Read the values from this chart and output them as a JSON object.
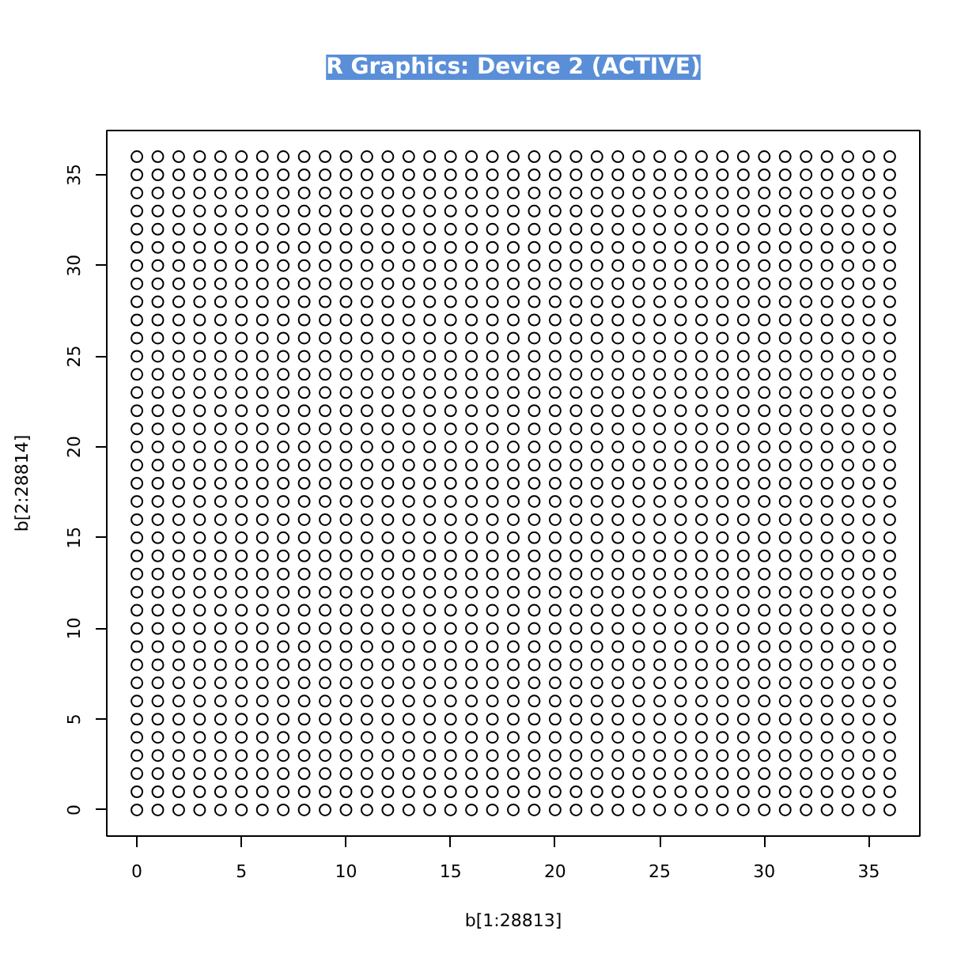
{
  "chart_data": {
    "type": "scatter",
    "title": "R Graphics: Device 2 (ACTIVE)",
    "xlabel": "b[1:28813]",
    "ylabel": "b[2:28814]",
    "xlim": [
      -1.44,
      37.44
    ],
    "ylim": [
      -1.44,
      37.44
    ],
    "xticks": [
      0,
      5,
      10,
      15,
      20,
      25,
      30,
      35
    ],
    "yticks": [
      0,
      5,
      10,
      15,
      20,
      25,
      30,
      35
    ],
    "marker": "circle",
    "color": "#000000",
    "x": [
      0,
      1,
      2,
      3,
      4,
      5,
      6,
      7,
      8,
      9,
      10,
      11,
      12,
      13,
      14,
      15,
      16,
      17,
      18,
      19,
      20,
      21,
      22,
      23,
      24,
      25,
      26,
      27,
      28,
      29,
      30,
      31,
      32,
      33,
      34,
      35,
      36,
      0,
      1,
      2,
      3,
      4,
      5,
      6,
      7,
      8,
      9,
      10,
      11,
      12,
      13,
      14,
      15,
      16,
      17,
      18,
      19,
      20,
      21,
      22,
      23,
      24,
      25,
      26,
      27,
      28,
      29,
      30,
      31,
      32,
      33,
      34,
      35,
      36,
      0,
      1,
      2,
      3,
      4,
      5,
      6,
      7,
      8,
      9,
      10,
      11,
      12,
      13,
      14,
      15,
      16,
      17,
      18,
      19,
      20,
      21,
      22,
      23,
      24,
      25,
      26,
      27,
      28,
      29,
      30,
      31,
      32,
      33,
      34,
      35,
      36,
      0,
      1,
      2,
      3,
      4,
      5,
      6,
      7,
      8,
      9,
      10,
      11,
      12,
      13,
      14,
      15,
      16,
      17,
      18,
      19,
      20,
      21,
      22,
      23,
      24,
      25,
      26,
      27,
      28,
      29,
      30,
      31,
      32,
      33,
      34,
      35,
      36,
      0,
      1,
      2,
      3,
      4,
      5,
      6,
      7,
      8,
      9,
      10,
      11,
      12,
      13,
      14,
      15,
      16,
      17,
      18,
      19,
      20,
      21,
      22,
      23,
      24,
      25,
      26,
      27,
      28,
      29,
      30,
      31,
      32,
      33,
      34,
      35,
      36,
      0,
      1,
      2,
      3,
      4,
      5,
      6,
      7,
      8,
      9,
      10,
      11,
      12,
      13,
      14,
      15,
      16,
      17,
      18,
      19,
      20,
      21,
      22,
      23,
      24,
      25,
      26,
      27,
      28,
      29,
      30,
      31,
      32,
      33,
      34,
      35,
      36,
      0,
      1,
      2,
      3,
      4,
      5,
      6,
      7,
      8,
      9,
      10,
      11,
      12,
      13,
      14,
      15,
      16,
      17,
      18,
      19,
      20,
      21,
      22,
      23,
      24,
      25,
      26,
      27,
      28,
      29,
      30,
      31,
      32,
      33,
      34,
      35,
      36,
      0,
      1,
      2,
      3,
      4,
      5,
      6,
      7,
      8,
      9,
      10,
      11,
      12,
      13,
      14,
      15,
      16,
      17,
      18,
      19,
      20,
      21,
      22,
      23,
      24,
      25,
      26,
      27,
      28,
      29,
      30,
      31,
      32,
      33,
      34,
      35,
      36,
      0,
      1,
      2,
      3,
      4,
      5,
      6,
      7,
      8,
      9,
      10,
      11,
      12,
      13,
      14,
      15,
      16,
      17,
      18,
      19,
      20,
      21,
      22,
      23,
      24,
      25,
      26,
      27,
      28,
      29,
      30,
      31,
      32,
      33,
      34,
      35,
      36,
      0,
      1,
      2,
      3,
      4,
      5,
      6,
      7,
      8,
      9,
      10,
      11,
      12,
      13,
      14,
      15,
      16,
      17,
      18,
      19,
      20,
      21,
      22,
      23,
      24,
      25,
      26,
      27,
      28,
      29,
      30,
      31,
      32,
      33,
      34,
      35,
      36,
      0,
      1,
      2,
      3,
      4,
      5,
      6,
      7,
      8,
      9,
      10,
      11,
      12,
      13,
      14,
      15,
      16,
      17,
      18,
      19,
      20,
      21,
      22,
      23,
      24,
      25,
      26,
      27,
      28,
      29,
      30,
      31,
      32,
      33,
      34,
      35,
      36,
      0,
      1,
      2,
      3,
      4,
      5,
      6,
      7,
      8,
      9,
      10,
      11,
      12,
      13,
      14,
      15,
      16,
      17,
      18,
      19,
      20,
      21,
      22,
      23,
      24,
      25,
      26,
      27,
      28,
      29,
      30,
      31,
      32,
      33,
      34,
      35,
      36,
      0,
      1,
      2,
      3,
      4,
      5,
      6,
      7,
      8,
      9,
      10,
      11,
      12,
      13,
      14,
      15,
      16,
      17,
      18,
      19,
      20,
      21,
      22,
      23,
      24,
      25,
      26,
      27,
      28,
      29,
      30,
      31,
      32,
      33,
      34,
      35,
      36,
      0,
      1,
      2,
      3,
      4,
      5,
      6,
      7,
      8,
      9,
      10,
      11,
      12,
      13,
      14,
      15,
      16,
      17,
      18,
      19,
      20,
      21,
      22,
      23,
      24,
      25,
      26,
      27,
      28,
      29,
      30,
      31,
      32,
      33,
      34,
      35,
      36,
      0,
      1,
      2,
      3,
      4,
      5,
      6,
      7,
      8,
      9,
      10,
      11,
      12,
      13,
      14,
      15,
      16,
      17,
      18,
      19,
      20,
      21,
      22,
      23,
      24,
      25,
      26,
      27,
      28,
      29,
      30,
      31,
      32,
      33,
      34,
      35,
      36,
      0,
      1,
      2,
      3,
      4,
      5,
      6,
      7,
      8,
      9,
      10,
      11,
      12,
      13,
      14,
      15,
      16,
      17,
      18,
      19,
      20,
      21,
      22,
      23,
      24,
      25,
      26,
      27,
      28,
      29,
      30,
      31,
      32,
      33,
      34,
      35,
      36,
      0,
      1,
      2,
      3,
      4,
      5,
      6,
      7,
      8,
      9,
      10,
      11,
      12,
      13,
      14,
      15,
      16,
      17,
      18,
      19,
      20,
      21,
      22,
      23,
      24,
      25,
      26,
      27,
      28,
      29,
      30,
      31,
      32,
      33,
      34,
      35,
      36,
      0,
      1,
      2,
      3,
      4,
      5,
      6,
      7,
      8,
      9,
      10,
      11,
      12,
      13,
      14,
      15,
      16,
      17,
      18,
      19,
      20,
      21,
      22,
      23,
      24,
      25,
      26,
      27,
      28,
      29,
      30,
      31,
      32,
      33,
      34,
      35,
      36,
      0,
      1,
      2,
      3,
      4,
      5,
      6,
      7,
      8,
      9,
      10,
      11,
      12,
      13,
      14,
      15,
      16,
      17,
      18,
      19,
      20,
      21,
      22,
      23,
      24,
      25,
      26,
      27,
      28,
      29,
      30,
      31,
      32,
      33,
      34,
      35,
      36,
      0,
      1,
      2,
      3,
      4,
      5,
      6,
      7,
      8,
      9,
      10,
      11,
      12,
      13,
      14,
      15,
      16,
      17,
      18,
      19,
      20,
      21,
      22,
      23,
      24,
      25,
      26,
      27,
      28,
      29,
      30,
      31,
      32,
      33,
      34,
      35,
      36,
      0,
      1,
      2,
      3,
      4,
      5,
      6,
      7,
      8,
      9,
      10,
      11,
      12,
      13,
      14,
      15,
      16,
      17,
      18,
      19,
      20,
      21,
      22,
      23,
      24,
      25,
      26,
      27,
      28,
      29,
      30,
      31,
      32,
      33,
      34,
      35,
      36,
      0,
      1,
      2,
      3,
      4,
      5,
      6,
      7,
      8,
      9,
      10,
      11,
      12,
      13,
      14,
      15,
      16,
      17,
      18,
      19,
      20,
      21,
      22,
      23,
      24,
      25,
      26,
      27,
      28,
      29,
      30,
      31,
      32,
      33,
      34,
      35,
      36,
      0,
      1,
      2,
      3,
      4,
      5,
      6,
      7,
      8,
      9,
      10,
      11,
      12,
      13,
      14,
      15,
      16,
      17,
      18,
      19,
      20,
      21,
      22,
      23,
      24,
      25,
      26,
      27,
      28,
      29,
      30,
      31,
      32,
      33,
      34,
      35,
      36,
      0,
      1,
      2,
      3,
      4,
      5,
      6,
      7,
      8,
      9,
      10,
      11,
      12,
      13,
      14,
      15,
      16,
      17,
      18,
      19,
      20,
      21,
      22,
      23,
      24,
      25,
      26,
      27,
      28,
      29,
      30,
      31,
      32,
      33,
      34,
      35,
      36,
      0,
      1,
      2,
      3,
      4,
      5,
      6,
      7,
      8,
      9,
      10,
      11,
      12,
      13,
      14,
      15,
      16,
      17,
      18,
      19,
      20,
      21,
      22,
      23,
      24,
      25,
      26,
      27,
      28,
      29,
      30,
      31,
      32,
      33,
      34,
      35,
      36,
      0,
      1,
      2,
      3,
      4,
      5,
      6,
      7,
      8,
      9,
      10,
      11,
      12,
      13,
      14,
      15,
      16,
      17,
      18,
      19,
      20,
      21,
      22,
      23,
      24,
      25,
      26,
      27,
      28,
      29,
      30,
      31,
      32,
      33,
      34,
      35,
      36,
      0,
      1,
      2,
      3,
      4,
      5,
      6,
      7,
      8,
      9,
      10,
      11,
      12,
      13,
      14,
      15,
      16,
      17,
      18,
      19,
      20,
      21,
      22,
      23,
      24,
      25,
      26,
      27,
      28,
      29,
      30,
      31,
      32,
      33,
      34,
      35,
      36,
      0,
      1,
      2,
      3,
      4,
      5,
      6,
      7,
      8,
      9,
      10,
      11,
      12,
      13,
      14,
      15,
      16,
      17,
      18,
      19,
      20,
      21,
      22,
      23,
      24,
      25,
      26,
      27,
      28,
      29,
      30,
      31,
      32,
      33,
      34,
      35,
      36,
      0,
      1,
      2,
      3,
      4,
      5,
      6,
      7,
      8,
      9,
      10,
      11,
      12,
      13,
      14,
      15,
      16,
      17,
      18,
      19,
      20,
      21,
      22,
      23,
      24,
      25,
      26,
      27,
      28,
      29,
      30,
      31,
      32,
      33,
      34,
      35,
      36,
      0,
      1,
      2,
      3,
      4,
      5,
      6,
      7,
      8,
      9,
      10,
      11,
      12,
      13,
      14,
      15,
      16,
      17,
      18,
      19,
      20,
      21,
      22,
      23,
      24,
      25,
      26,
      27,
      28,
      29,
      30,
      31,
      32,
      33,
      34,
      35,
      36,
      0,
      1,
      2,
      3,
      4,
      5,
      6,
      7,
      8,
      9,
      10,
      11,
      12,
      13,
      14,
      15,
      16,
      17,
      18,
      19,
      20,
      21,
      22,
      23,
      24,
      25,
      26,
      27,
      28,
      29,
      30,
      31,
      32,
      33,
      34,
      35,
      36,
      0,
      1,
      2,
      3,
      4,
      5,
      6,
      7,
      8,
      9,
      10,
      11,
      12,
      13,
      14,
      15,
      16,
      17,
      18,
      19,
      20,
      21,
      22,
      23,
      24,
      25,
      26,
      27,
      28,
      29,
      30,
      31,
      32,
      33,
      34,
      35,
      36,
      0,
      1,
      2,
      3,
      4,
      5,
      6,
      7,
      8,
      9,
      10,
      11,
      12,
      13,
      14,
      15,
      16,
      17,
      18,
      19,
      20,
      21,
      22,
      23,
      24,
      25,
      26,
      27,
      28,
      29,
      30,
      31,
      32,
      33,
      34,
      35,
      36,
      0,
      1,
      2,
      3,
      4,
      5,
      6,
      7,
      8,
      9,
      10,
      11,
      12,
      13,
      14,
      15,
      16,
      17,
      18,
      19,
      20,
      21,
      22,
      23,
      24,
      25,
      26,
      27,
      28,
      29,
      30,
      31,
      32,
      33,
      34,
      35,
      36,
      0,
      1,
      2,
      3,
      4,
      5,
      6,
      7,
      8,
      9,
      10,
      11,
      12,
      13,
      14,
      15,
      16,
      17,
      18,
      19,
      20,
      21,
      22,
      23,
      24,
      25,
      26,
      27,
      28,
      29,
      30,
      31,
      32,
      33,
      34,
      35,
      36,
      0,
      1,
      2,
      3,
      4,
      5,
      6,
      7,
      8,
      9,
      10,
      11,
      12,
      13,
      14,
      15,
      16,
      17,
      18,
      19,
      20,
      21,
      22,
      23,
      24,
      25,
      26,
      27,
      28,
      29,
      30,
      31,
      32,
      33,
      34,
      35,
      36,
      0,
      1,
      2,
      3,
      4,
      5,
      6,
      7,
      8,
      9,
      10,
      11,
      12,
      13,
      14,
      15,
      16,
      17,
      18,
      19,
      20,
      21,
      22,
      23,
      24,
      25,
      26,
      27,
      28,
      29,
      30,
      31,
      32,
      33,
      34,
      35,
      36
    ],
    "values": [
      0,
      0,
      0,
      0,
      0,
      0,
      0,
      0,
      0,
      0,
      0,
      0,
      0,
      0,
      0,
      0,
      0,
      0,
      0,
      0,
      0,
      0,
      0,
      0,
      0,
      0,
      0,
      0,
      0,
      0,
      0,
      0,
      0,
      0,
      0,
      0,
      0,
      1,
      1,
      1,
      1,
      1,
      1,
      1,
      1,
      1,
      1,
      1,
      1,
      1,
      1,
      1,
      1,
      1,
      1,
      1,
      1,
      1,
      1,
      1,
      1,
      1,
      1,
      1,
      1,
      1,
      1,
      1,
      1,
      1,
      1,
      1,
      1,
      1,
      2,
      2,
      2,
      2,
      2,
      2,
      2,
      2,
      2,
      2,
      2,
      2,
      2,
      2,
      2,
      2,
      2,
      2,
      2,
      2,
      2,
      2,
      2,
      2,
      2,
      2,
      2,
      2,
      2,
      2,
      2,
      2,
      2,
      2,
      2,
      2,
      2,
      3,
      3,
      3,
      3,
      3,
      3,
      3,
      3,
      3,
      3,
      3,
      3,
      3,
      3,
      3,
      3,
      3,
      3,
      3,
      3,
      3,
      3,
      3,
      3,
      3,
      3,
      3,
      3,
      3,
      3,
      3,
      3,
      3,
      3,
      3,
      3,
      3,
      4,
      4,
      4,
      4,
      4,
      4,
      4,
      4,
      4,
      4,
      4,
      4,
      4,
      4,
      4,
      4,
      4,
      4,
      4,
      4,
      4,
      4,
      4,
      4,
      4,
      4,
      4,
      4,
      4,
      4,
      4,
      4,
      4,
      4,
      4,
      4,
      4,
      5,
      5,
      5,
      5,
      5,
      5,
      5,
      5,
      5,
      5,
      5,
      5,
      5,
      5,
      5,
      5,
      5,
      5,
      5,
      5,
      5,
      5,
      5,
      5,
      5,
      5,
      5,
      5,
      5,
      5,
      5,
      5,
      5,
      5,
      5,
      5,
      5,
      6,
      6,
      6,
      6,
      6,
      6,
      6,
      6,
      6,
      6,
      6,
      6,
      6,
      6,
      6,
      6,
      6,
      6,
      6,
      6,
      6,
      6,
      6,
      6,
      6,
      6,
      6,
      6,
      6,
      6,
      6,
      6,
      6,
      6,
      6,
      6,
      6,
      7,
      7,
      7,
      7,
      7,
      7,
      7,
      7,
      7,
      7,
      7,
      7,
      7,
      7,
      7,
      7,
      7,
      7,
      7,
      7,
      7,
      7,
      7,
      7,
      7,
      7,
      7,
      7,
      7,
      7,
      7,
      7,
      7,
      7,
      7,
      7,
      7,
      8,
      8,
      8,
      8,
      8,
      8,
      8,
      8,
      8,
      8,
      8,
      8,
      8,
      8,
      8,
      8,
      8,
      8,
      8,
      8,
      8,
      8,
      8,
      8,
      8,
      8,
      8,
      8,
      8,
      8,
      8,
      8,
      8,
      8,
      8,
      8,
      8,
      9,
      9,
      9,
      9,
      9,
      9,
      9,
      9,
      9,
      9,
      9,
      9,
      9,
      9,
      9,
      9,
      9,
      9,
      9,
      9,
      9,
      9,
      9,
      9,
      9,
      9,
      9,
      9,
      9,
      9,
      9,
      9,
      9,
      9,
      9,
      9,
      9,
      10,
      10,
      10,
      10,
      10,
      10,
      10,
      10,
      10,
      10,
      10,
      10,
      10,
      10,
      10,
      10,
      10,
      10,
      10,
      10,
      10,
      10,
      10,
      10,
      10,
      10,
      10,
      10,
      10,
      10,
      10,
      10,
      10,
      10,
      10,
      10,
      10,
      11,
      11,
      11,
      11,
      11,
      11,
      11,
      11,
      11,
      11,
      11,
      11,
      11,
      11,
      11,
      11,
      11,
      11,
      11,
      11,
      11,
      11,
      11,
      11,
      11,
      11,
      11,
      11,
      11,
      11,
      11,
      11,
      11,
      11,
      11,
      11,
      11,
      12,
      12,
      12,
      12,
      12,
      12,
      12,
      12,
      12,
      12,
      12,
      12,
      12,
      12,
      12,
      12,
      12,
      12,
      12,
      12,
      12,
      12,
      12,
      12,
      12,
      12,
      12,
      12,
      12,
      12,
      12,
      12,
      12,
      12,
      12,
      12,
      12,
      13,
      13,
      13,
      13,
      13,
      13,
      13,
      13,
      13,
      13,
      13,
      13,
      13,
      13,
      13,
      13,
      13,
      13,
      13,
      13,
      13,
      13,
      13,
      13,
      13,
      13,
      13,
      13,
      13,
      13,
      13,
      13,
      13,
      13,
      13,
      13,
      13,
      14,
      14,
      14,
      14,
      14,
      14,
      14,
      14,
      14,
      14,
      14,
      14,
      14,
      14,
      14,
      14,
      14,
      14,
      14,
      14,
      14,
      14,
      14,
      14,
      14,
      14,
      14,
      14,
      14,
      14,
      14,
      14,
      14,
      14,
      14,
      14,
      14,
      15,
      15,
      15,
      15,
      15,
      15,
      15,
      15,
      15,
      15,
      15,
      15,
      15,
      15,
      15,
      15,
      15,
      15,
      15,
      15,
      15,
      15,
      15,
      15,
      15,
      15,
      15,
      15,
      15,
      15,
      15,
      15,
      15,
      15,
      15,
      15,
      15,
      16,
      16,
      16,
      16,
      16,
      16,
      16,
      16,
      16,
      16,
      16,
      16,
      16,
      16,
      16,
      16,
      16,
      16,
      16,
      16,
      16,
      16,
      16,
      16,
      16,
      16,
      16,
      16,
      16,
      16,
      16,
      16,
      16,
      16,
      16,
      16,
      16,
      17,
      17,
      17,
      17,
      17,
      17,
      17,
      17,
      17,
      17,
      17,
      17,
      17,
      17,
      17,
      17,
      17,
      17,
      17,
      17,
      17,
      17,
      17,
      17,
      17,
      17,
      17,
      17,
      17,
      17,
      17,
      17,
      17,
      17,
      17,
      17,
      17,
      18,
      18,
      18,
      18,
      18,
      18,
      18,
      18,
      18,
      18,
      18,
      18,
      18,
      18,
      18,
      18,
      18,
      18,
      18,
      18,
      18,
      18,
      18,
      18,
      18,
      18,
      18,
      18,
      18,
      18,
      18,
      18,
      18,
      18,
      18,
      18,
      18,
      19,
      19,
      19,
      19,
      19,
      19,
      19,
      19,
      19,
      19,
      19,
      19,
      19,
      19,
      19,
      19,
      19,
      19,
      19,
      19,
      19,
      19,
      19,
      19,
      19,
      19,
      19,
      19,
      19,
      19,
      19,
      19,
      19,
      19,
      19,
      19,
      19,
      20,
      20,
      20,
      20,
      20,
      20,
      20,
      20,
      20,
      20,
      20,
      20,
      20,
      20,
      20,
      20,
      20,
      20,
      20,
      20,
      20,
      20,
      20,
      20,
      20,
      20,
      20,
      20,
      20,
      20,
      20,
      20,
      20,
      20,
      20,
      20,
      20,
      21,
      21,
      21,
      21,
      21,
      21,
      21,
      21,
      21,
      21,
      21,
      21,
      21,
      21,
      21,
      21,
      21,
      21,
      21,
      21,
      21,
      21,
      21,
      21,
      21,
      21,
      21,
      21,
      21,
      21,
      21,
      21,
      21,
      21,
      21,
      21,
      21,
      22,
      22,
      22,
      22,
      22,
      22,
      22,
      22,
      22,
      22,
      22,
      22,
      22,
      22,
      22,
      22,
      22,
      22,
      22,
      22,
      22,
      22,
      22,
      22,
      22,
      22,
      22,
      22,
      22,
      22,
      22,
      22,
      22,
      22,
      22,
      22,
      22,
      23,
      23,
      23,
      23,
      23,
      23,
      23,
      23,
      23,
      23,
      23,
      23,
      23,
      23,
      23,
      23,
      23,
      23,
      23,
      23,
      23,
      23,
      23,
      23,
      23,
      23,
      23,
      23,
      23,
      23,
      23,
      23,
      23,
      23,
      23,
      23,
      23,
      24,
      24,
      24,
      24,
      24,
      24,
      24,
      24,
      24,
      24,
      24,
      24,
      24,
      24,
      24,
      24,
      24,
      24,
      24,
      24,
      24,
      24,
      24,
      24,
      24,
      24,
      24,
      24,
      24,
      24,
      24,
      24,
      24,
      24,
      24,
      24,
      24,
      25,
      25,
      25,
      25,
      25,
      25,
      25,
      25,
      25,
      25,
      25,
      25,
      25,
      25,
      25,
      25,
      25,
      25,
      25,
      25,
      25,
      25,
      25,
      25,
      25,
      25,
      25,
      25,
      25,
      25,
      25,
      25,
      25,
      25,
      25,
      25,
      25,
      26,
      26,
      26,
      26,
      26,
      26,
      26,
      26,
      26,
      26,
      26,
      26,
      26,
      26,
      26,
      26,
      26,
      26,
      26,
      26,
      26,
      26,
      26,
      26,
      26,
      26,
      26,
      26,
      26,
      26,
      26,
      26,
      26,
      26,
      26,
      26,
      26,
      27,
      27,
      27,
      27,
      27,
      27,
      27,
      27,
      27,
      27,
      27,
      27,
      27,
      27,
      27,
      27,
      27,
      27,
      27,
      27,
      27,
      27,
      27,
      27,
      27,
      27,
      27,
      27,
      27,
      27,
      27,
      27,
      27,
      27,
      27,
      27,
      27,
      28,
      28,
      28,
      28,
      28,
      28,
      28,
      28,
      28,
      28,
      28,
      28,
      28,
      28,
      28,
      28,
      28,
      28,
      28,
      28,
      28,
      28,
      28,
      28,
      28,
      28,
      28,
      28,
      28,
      28,
      28,
      28,
      28,
      28,
      28,
      28,
      28,
      29,
      29,
      29,
      29,
      29,
      29,
      29,
      29,
      29,
      29,
      29,
      29,
      29,
      29,
      29,
      29,
      29,
      29,
      29,
      29,
      29,
      29,
      29,
      29,
      29,
      29,
      29,
      29,
      29,
      29,
      29,
      29,
      29,
      29,
      29,
      29,
      29,
      30,
      30,
      30,
      30,
      30,
      30,
      30,
      30,
      30,
      30,
      30,
      30,
      30,
      30,
      30,
      30,
      30,
      30,
      30,
      30,
      30,
      30,
      30,
      30,
      30,
      30,
      30,
      30,
      30,
      30,
      30,
      30,
      30,
      30,
      30,
      30,
      30,
      31,
      31,
      31,
      31,
      31,
      31,
      31,
      31,
      31,
      31,
      31,
      31,
      31,
      31,
      31,
      31,
      31,
      31,
      31,
      31,
      31,
      31,
      31,
      31,
      31,
      31,
      31,
      31,
      31,
      31,
      31,
      31,
      31,
      31,
      31,
      31,
      31,
      32,
      32,
      32,
      32,
      32,
      32,
      32,
      32,
      32,
      32,
      32,
      32,
      32,
      32,
      32,
      32,
      32,
      32,
      32,
      32,
      32,
      32,
      32,
      32,
      32,
      32,
      32,
      32,
      32,
      32,
      32,
      32,
      32,
      32,
      32,
      32,
      32,
      33,
      33,
      33,
      33,
      33,
      33,
      33,
      33,
      33,
      33,
      33,
      33,
      33,
      33,
      33,
      33,
      33,
      33,
      33,
      33,
      33,
      33,
      33,
      33,
      33,
      33,
      33,
      33,
      33,
      33,
      33,
      33,
      33,
      33,
      33,
      33,
      33,
      34,
      34,
      34,
      34,
      34,
      34,
      34,
      34,
      34,
      34,
      34,
      34,
      34,
      34,
      34,
      34,
      34,
      34,
      34,
      34,
      34,
      34,
      34,
      34,
      34,
      34,
      34,
      34,
      34,
      34,
      34,
      34,
      34,
      34,
      34,
      34,
      34,
      35,
      35,
      35,
      35,
      35,
      35,
      35,
      35,
      35,
      35,
      35,
      35,
      35,
      35,
      35,
      35,
      35,
      35,
      35,
      35,
      35,
      35,
      35,
      35,
      35,
      35,
      35,
      35,
      35,
      35,
      35,
      35,
      35,
      35,
      35,
      35,
      35,
      36,
      36,
      36,
      36,
      36,
      36,
      36,
      36,
      36,
      36,
      36,
      36,
      36,
      36,
      36,
      36,
      36,
      36,
      36,
      36,
      36,
      36,
      36,
      36,
      36,
      36,
      36,
      36,
      36,
      36,
      36,
      36,
      36,
      36,
      36,
      36,
      36
    ]
  }
}
